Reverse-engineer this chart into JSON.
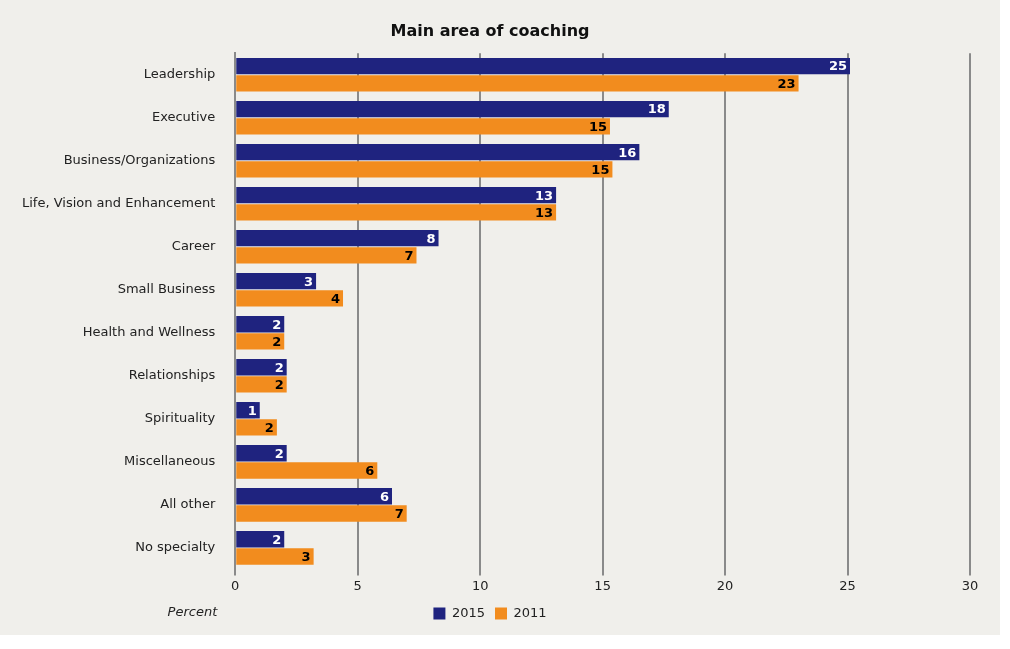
{
  "chart_data": {
    "type": "bar",
    "orientation": "horizontal",
    "title": "Main area of coaching",
    "xlabel": "Percent",
    "categories": [
      "Leadership",
      "Executive",
      "Business/Organizations",
      "Life, Vision and Enhancement",
      "Career",
      "Small Business",
      "Health and Wellness",
      "Relationships",
      "Spirituality",
      "Miscellaneous",
      "All other",
      "No specialty"
    ],
    "series": [
      {
        "name": "2015",
        "color": "#1f237f",
        "values": [
          25.1,
          17.7,
          16.5,
          13.1,
          8.3,
          3.3,
          2.0,
          2.1,
          1.0,
          2.1,
          6.4,
          2.0
        ],
        "value_labels": [
          "25",
          "18",
          "16",
          "13",
          "8",
          "3",
          "2",
          "2",
          "1",
          "2",
          "6",
          "2"
        ]
      },
      {
        "name": "2011",
        "color": "#f28c1e",
        "values": [
          23.0,
          15.3,
          15.4,
          13.1,
          7.4,
          4.4,
          2.0,
          2.1,
          1.7,
          5.8,
          7.0,
          3.2
        ],
        "value_labels": [
          "23",
          "15",
          "15",
          "13",
          "7",
          "4",
          "2",
          "2",
          "2",
          "6",
          "7",
          "3"
        ]
      }
    ],
    "xlim": [
      0,
      30
    ],
    "xticks": [
      0,
      5,
      10,
      15,
      20,
      25,
      30
    ],
    "grid": "x",
    "legend": "bottom"
  }
}
